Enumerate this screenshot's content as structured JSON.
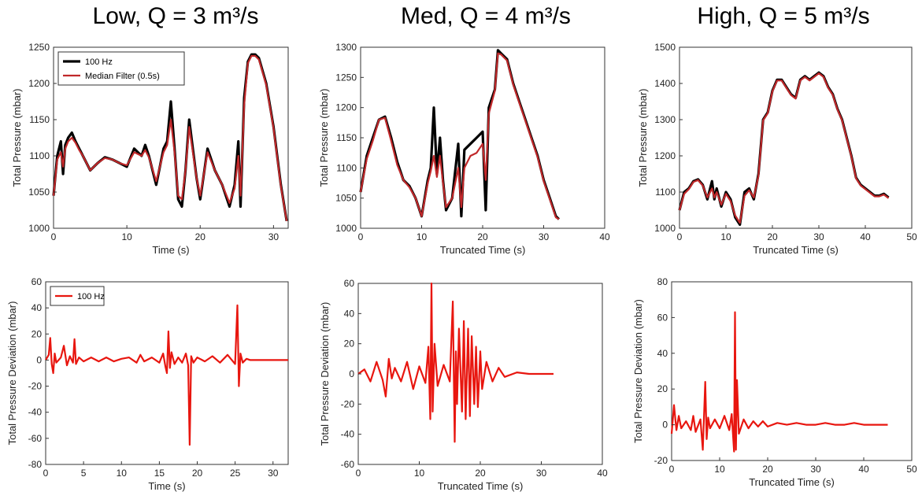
{
  "column_titles": [
    "Low, Q = 3 m³/s",
    "Med, Q = 4 m³/s",
    "High, Q = 5 m³/s"
  ],
  "colors": {
    "raw": "#000000",
    "filtered": "#c0282a",
    "deviation": "#e8160f",
    "axis": "#333333"
  },
  "chart_data": [
    {
      "type": "line",
      "xlabel": "Time (s)",
      "ylabel": "Total Pressure (mbar)",
      "xlim": [
        0,
        32
      ],
      "ylim": [
        1000,
        1250
      ],
      "xticks": [
        0,
        10,
        20,
        30
      ],
      "yticks": [
        1000,
        1050,
        1100,
        1150,
        1200,
        1250
      ],
      "legend": {
        "location": "top-left",
        "entries": [
          "100 Hz",
          "Median Filter (0.5s)"
        ]
      },
      "series": [
        {
          "name": "100 Hz",
          "color": "#000000",
          "x": [
            0,
            0.5,
            1,
            1.3,
            1.6,
            2,
            2.5,
            3,
            3.5,
            4,
            5,
            6,
            7,
            8,
            9,
            10,
            11,
            12,
            12.5,
            13,
            14,
            15,
            15.5,
            16,
            16.5,
            17,
            17.5,
            18,
            18.5,
            19,
            19.5,
            20,
            21,
            22,
            23,
            24,
            24.7,
            25.2,
            25.5,
            26,
            26.5,
            27,
            27.5,
            28,
            29,
            30,
            31,
            31.8
          ],
          "y": [
            1045,
            1100,
            1120,
            1075,
            1115,
            1125,
            1132,
            1120,
            1110,
            1100,
            1080,
            1090,
            1098,
            1095,
            1090,
            1085,
            1110,
            1100,
            1115,
            1100,
            1060,
            1110,
            1120,
            1175,
            1110,
            1040,
            1030,
            1080,
            1150,
            1110,
            1070,
            1040,
            1110,
            1080,
            1060,
            1030,
            1060,
            1120,
            1030,
            1180,
            1230,
            1240,
            1240,
            1235,
            1200,
            1140,
            1060,
            1010
          ]
        },
        {
          "name": "Median Filter (0.5s)",
          "color": "#c0282a",
          "x": [
            0,
            0.5,
            1,
            1.3,
            1.6,
            2,
            2.5,
            3,
            3.5,
            4,
            5,
            6,
            7,
            8,
            9,
            10,
            11,
            12,
            12.5,
            13,
            14,
            15,
            15.5,
            16,
            16.5,
            17,
            17.5,
            18,
            18.5,
            19,
            19.5,
            20,
            21,
            22,
            23,
            24,
            24.7,
            25.2,
            25.5,
            26,
            26.5,
            27,
            27.5,
            28,
            29,
            30,
            31,
            31.8
          ],
          "y": [
            1045,
            1095,
            1105,
            1085,
            1110,
            1120,
            1125,
            1118,
            1108,
            1100,
            1080,
            1090,
            1097,
            1095,
            1090,
            1087,
            1105,
            1100,
            1108,
            1098,
            1065,
            1105,
            1115,
            1150,
            1105,
            1045,
            1040,
            1080,
            1140,
            1105,
            1070,
            1045,
            1105,
            1080,
            1060,
            1035,
            1055,
            1100,
            1045,
            1170,
            1228,
            1238,
            1238,
            1233,
            1198,
            1138,
            1058,
            1010
          ]
        }
      ]
    },
    {
      "type": "line",
      "xlabel": "Truncated Time (s)",
      "ylabel": "Total Pressure (mbar)",
      "xlim": [
        0,
        40
      ],
      "ylim": [
        1000,
        1300
      ],
      "xticks": [
        0,
        10,
        20,
        30,
        40
      ],
      "yticks": [
        1000,
        1050,
        1100,
        1150,
        1200,
        1250,
        1300
      ],
      "series": [
        {
          "name": "100 Hz",
          "color": "#000000",
          "x": [
            0,
            1,
            2,
            3,
            4,
            5,
            6,
            7,
            8,
            9,
            10,
            11,
            11.5,
            12,
            12.5,
            13,
            13.5,
            14,
            15,
            16,
            16.5,
            17,
            18,
            19,
            20,
            20.5,
            21,
            22,
            22.5,
            23,
            24,
            25,
            26,
            27,
            28,
            29,
            30,
            31,
            32,
            32.5
          ],
          "y": [
            1060,
            1120,
            1150,
            1180,
            1185,
            1150,
            1110,
            1080,
            1070,
            1050,
            1020,
            1080,
            1100,
            1200,
            1090,
            1150,
            1080,
            1030,
            1050,
            1140,
            1020,
            1130,
            1140,
            1150,
            1160,
            1030,
            1200,
            1230,
            1295,
            1290,
            1280,
            1240,
            1210,
            1180,
            1150,
            1120,
            1080,
            1050,
            1020,
            1015
          ]
        },
        {
          "name": "Median Filter (0.5s)",
          "color": "#c0282a",
          "x": [
            0,
            1,
            2,
            3,
            4,
            5,
            6,
            7,
            8,
            9,
            10,
            11,
            11.5,
            12,
            12.5,
            13,
            13.5,
            14,
            15,
            16,
            16.5,
            17,
            18,
            19,
            20,
            20.5,
            21,
            22,
            22.5,
            23,
            24,
            25,
            26,
            27,
            28,
            29,
            30,
            31,
            32,
            32.5
          ],
          "y": [
            1060,
            1115,
            1145,
            1180,
            1183,
            1145,
            1105,
            1080,
            1068,
            1050,
            1020,
            1075,
            1095,
            1120,
            1085,
            1120,
            1075,
            1035,
            1050,
            1100,
            1035,
            1100,
            1120,
            1125,
            1140,
            1080,
            1190,
            1228,
            1290,
            1288,
            1278,
            1238,
            1208,
            1178,
            1148,
            1118,
            1078,
            1048,
            1018,
            1015
          ]
        }
      ]
    },
    {
      "type": "line",
      "xlabel": "Truncated Time (s)",
      "ylabel": "Total Pressure (mbar)",
      "xlim": [
        0,
        50
      ],
      "ylim": [
        1000,
        1500
      ],
      "xticks": [
        0,
        10,
        20,
        30,
        40,
        50
      ],
      "yticks": [
        1000,
        1100,
        1200,
        1300,
        1400,
        1500
      ],
      "series": [
        {
          "name": "100 Hz",
          "color": "#000000",
          "x": [
            0,
            1,
            2,
            3,
            4,
            5,
            6,
            7,
            7.5,
            8,
            9,
            10,
            11,
            12,
            13,
            14,
            15,
            16,
            17,
            18,
            19,
            20,
            21,
            22,
            23,
            24,
            25,
            26,
            27,
            28,
            29,
            30,
            31,
            32,
            33,
            34,
            35,
            36,
            37,
            38,
            39,
            40,
            41,
            42,
            43,
            44,
            45
          ],
          "y": [
            1050,
            1100,
            1110,
            1130,
            1135,
            1120,
            1080,
            1130,
            1080,
            1110,
            1060,
            1100,
            1080,
            1030,
            1010,
            1100,
            1110,
            1080,
            1150,
            1300,
            1320,
            1380,
            1410,
            1410,
            1390,
            1370,
            1360,
            1410,
            1420,
            1410,
            1420,
            1430,
            1420,
            1390,
            1370,
            1330,
            1300,
            1250,
            1200,
            1140,
            1120,
            1110,
            1100,
            1090,
            1090,
            1095,
            1085
          ]
        },
        {
          "name": "Median Filter (0.5s)",
          "color": "#c0282a",
          "x": [
            0,
            1,
            2,
            3,
            4,
            5,
            6,
            7,
            7.5,
            8,
            9,
            10,
            11,
            12,
            13,
            14,
            15,
            16,
            17,
            18,
            19,
            20,
            21,
            22,
            23,
            24,
            25,
            26,
            27,
            28,
            29,
            30,
            31,
            32,
            33,
            34,
            35,
            36,
            37,
            38,
            39,
            40,
            41,
            42,
            43,
            44,
            45
          ],
          "y": [
            1050,
            1095,
            1108,
            1128,
            1133,
            1118,
            1085,
            1110,
            1085,
            1100,
            1065,
            1095,
            1075,
            1035,
            1015,
            1090,
            1105,
            1085,
            1145,
            1298,
            1318,
            1378,
            1408,
            1408,
            1388,
            1368,
            1358,
            1408,
            1418,
            1408,
            1418,
            1428,
            1418,
            1388,
            1368,
            1328,
            1298,
            1248,
            1198,
            1138,
            1118,
            1108,
            1098,
            1088,
            1088,
            1093,
            1083
          ]
        }
      ]
    },
    {
      "type": "line",
      "xlabel": "Time (s)",
      "ylabel": "Total Pressure Deviation (mbar)",
      "xlim": [
        0,
        32
      ],
      "ylim": [
        -80,
        60
      ],
      "xticks": [
        0,
        5,
        10,
        15,
        20,
        25,
        30
      ],
      "yticks": [
        -80,
        -60,
        -40,
        -20,
        0,
        20,
        40,
        60
      ],
      "legend": {
        "location": "top-left",
        "entries": [
          "100 Hz"
        ]
      },
      "series": [
        {
          "name": "100 Hz",
          "color": "#e8160f",
          "x": [
            0,
            0.4,
            0.6,
            0.8,
            1.0,
            1.2,
            1.4,
            2,
            2.4,
            2.8,
            3.2,
            3.6,
            3.8,
            4.0,
            4.4,
            5,
            6,
            7,
            8,
            9,
            10,
            11,
            12,
            12.5,
            13,
            14,
            15,
            15.5,
            15.8,
            16,
            16.2,
            16.4,
            16.6,
            17,
            17.5,
            18,
            18.5,
            18.8,
            19.0,
            19.2,
            19.5,
            20,
            21,
            22,
            23,
            24,
            25,
            25.3,
            25.5,
            25.7,
            26,
            26.5,
            27,
            28,
            29,
            30,
            31,
            32
          ],
          "y": [
            0,
            4,
            17,
            -3,
            -10,
            5,
            -2,
            2,
            11,
            -4,
            3,
            -2,
            16,
            -3,
            2,
            -1,
            2,
            -1,
            2,
            -1,
            1,
            2,
            -2,
            4,
            -1,
            2,
            -2,
            5,
            -5,
            -10,
            22,
            -6,
            6,
            -3,
            2,
            -2,
            5,
            -4,
            -65,
            3,
            -2,
            2,
            -1,
            3,
            -2,
            4,
            -3,
            42,
            -20,
            5,
            -2,
            1,
            0,
            0,
            0,
            0,
            0,
            0
          ]
        }
      ]
    },
    {
      "type": "line",
      "xlabel": "Truncated Time (s)",
      "ylabel": "Total Pressure Deviation (mbar)",
      "xlim": [
        0,
        40
      ],
      "ylim": [
        -60,
        60
      ],
      "xticks": [
        0,
        10,
        20,
        30,
        40
      ],
      "yticks": [
        -60,
        -40,
        -20,
        0,
        20,
        40,
        60
      ],
      "series": [
        {
          "name": "100 Hz",
          "color": "#e8160f",
          "x": [
            0,
            1,
            2,
            3,
            4,
            4.5,
            5,
            5.5,
            6,
            7,
            8,
            9,
            10,
            11,
            11.5,
            11.8,
            12,
            12.2,
            12.5,
            13,
            14,
            15,
            15.5,
            15.8,
            16,
            16.2,
            16.5,
            17,
            17.3,
            17.6,
            18,
            18.3,
            18.6,
            19,
            19.3,
            19.6,
            20,
            20.3,
            21,
            22,
            23,
            24,
            26,
            28,
            30,
            32
          ],
          "y": [
            0,
            3,
            -5,
            8,
            -4,
            -15,
            10,
            -3,
            4,
            -5,
            8,
            -10,
            5,
            -6,
            18,
            -30,
            60,
            -25,
            20,
            -8,
            6,
            -5,
            48,
            -45,
            15,
            -20,
            30,
            -25,
            35,
            -30,
            30,
            -28,
            25,
            -20,
            18,
            -22,
            15,
            -10,
            8,
            -5,
            4,
            -2,
            1,
            0,
            0,
            0
          ]
        }
      ]
    },
    {
      "type": "line",
      "xlabel": "Truncated Time (s)",
      "ylabel": "Total Pressure Deviation (mbar)",
      "xlim": [
        0,
        50
      ],
      "ylim": [
        -20,
        80
      ],
      "xticks": [
        0,
        10,
        20,
        30,
        40,
        50
      ],
      "yticks": [
        -20,
        0,
        20,
        40,
        60,
        80
      ],
      "series": [
        {
          "name": "100 Hz",
          "color": "#e8160f",
          "x": [
            0,
            0.5,
            1,
            1.5,
            2,
            3,
            4,
            4.5,
            5,
            6,
            6.5,
            7,
            7.3,
            7.6,
            8,
            9,
            10,
            11,
            12,
            12.5,
            13,
            13.2,
            13.4,
            13.6,
            14,
            15,
            16,
            17,
            18,
            19,
            20,
            22,
            24,
            26,
            28,
            30,
            32,
            34,
            36,
            38,
            40,
            42,
            44,
            45
          ],
          "y": [
            -5,
            11,
            -3,
            5,
            -2,
            2,
            -3,
            5,
            -4,
            3,
            -14,
            24,
            -8,
            4,
            -2,
            3,
            -2,
            5,
            -3,
            6,
            -15,
            63,
            -14,
            25,
            -5,
            3,
            -2,
            2,
            -1,
            2,
            -1,
            1,
            0,
            1,
            0,
            0,
            1,
            0,
            0,
            1,
            0,
            0,
            0,
            0
          ]
        }
      ]
    }
  ]
}
